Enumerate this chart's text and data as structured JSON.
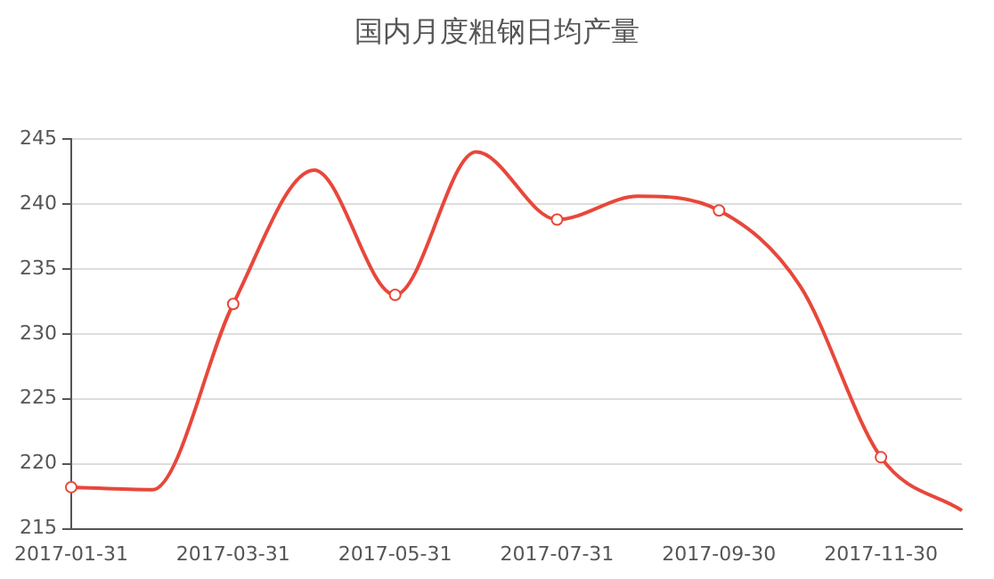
{
  "chart_data": {
    "type": "line",
    "title": "国内月度粗钢日均产量",
    "categories": [
      "2017-01-31",
      null,
      "2017-03-31",
      null,
      "2017-05-31",
      null,
      "2017-07-31",
      null,
      "2017-09-30",
      null,
      "2017-11-30",
      null
    ],
    "series": [
      {
        "color": "#e8473b",
        "values": [
          218.2,
          218.0,
          232.3,
          242.6,
          233.0,
          244.0,
          238.8,
          240.6,
          239.5,
          233.7,
          220.5,
          216.4
        ]
      }
    ],
    "ylim": [
      215,
      245
    ],
    "yticks": [
      215,
      220,
      225,
      230,
      235,
      240,
      245
    ],
    "grid": "y",
    "legend": false,
    "marker": "circle",
    "line_style": "solid"
  }
}
